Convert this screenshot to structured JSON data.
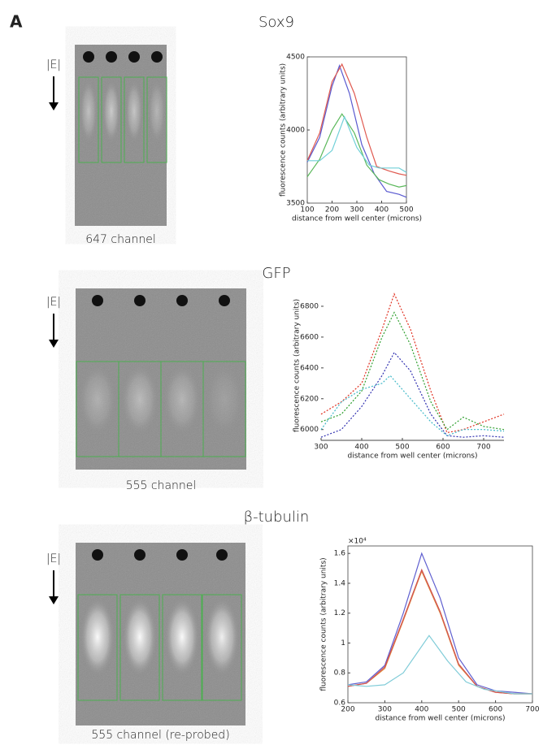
{
  "panel_label": "A",
  "panels": [
    {
      "title": "Sox9",
      "field_label": "|E|",
      "caption": "647 channel"
    },
    {
      "title": "GFP",
      "field_label": "|E|",
      "caption": "555 channel"
    },
    {
      "title": "β-tubulin",
      "field_label": "|E|",
      "caption": "555 channel (re-probed)"
    }
  ],
  "chart_data": [
    {
      "type": "line",
      "x_label": "distance from well center (microns)",
      "y_label": "fluorescence counts (arbitrary units)",
      "xlim": [
        100,
        500
      ],
      "xticks": [
        100,
        200,
        300,
        400,
        500
      ],
      "ylim": [
        3500,
        4500
      ],
      "yticks": [
        3500,
        4000,
        4500
      ],
      "line_style": "solid",
      "series": [
        {
          "color": "#5a5ad0",
          "x": [
            100,
            150,
            200,
            230,
            270,
            320,
            370,
            420,
            470,
            500
          ],
          "values": [
            3780,
            3950,
            4300,
            4440,
            4250,
            3900,
            3700,
            3580,
            3560,
            3540
          ]
        },
        {
          "color": "#e05a50",
          "x": [
            100,
            150,
            200,
            240,
            290,
            340,
            380,
            430,
            470,
            500
          ],
          "values": [
            3790,
            3980,
            4330,
            4450,
            4250,
            3950,
            3750,
            3720,
            3700,
            3690
          ]
        },
        {
          "color": "#5ab85a",
          "x": [
            100,
            150,
            200,
            240,
            290,
            340,
            390,
            430,
            470,
            500
          ],
          "values": [
            3680,
            3800,
            4000,
            4110,
            3980,
            3760,
            3660,
            3630,
            3610,
            3620
          ]
        },
        {
          "color": "#70d0d8",
          "x": [
            100,
            150,
            200,
            250,
            300,
            350,
            390,
            430,
            470,
            500
          ],
          "values": [
            3790,
            3790,
            3860,
            4090,
            3880,
            3760,
            3740,
            3740,
            3740,
            3710
          ]
        }
      ]
    },
    {
      "type": "line",
      "x_label": "distance from well center (microns)",
      "y_label": "fluorescence counts (arbitrary units)",
      "xlim": [
        300,
        750
      ],
      "xticks": [
        300,
        400,
        500,
        600,
        700
      ],
      "ylim": [
        5930,
        6900
      ],
      "yticks": [
        6000,
        6200,
        6400,
        6600,
        6800
      ],
      "line_style": "dotted",
      "series": [
        {
          "color": "#e03020",
          "x": [
            300,
            350,
            400,
            450,
            480,
            520,
            570,
            610,
            650,
            700,
            750
          ],
          "values": [
            6100,
            6180,
            6300,
            6650,
            6880,
            6650,
            6250,
            5980,
            6000,
            6050,
            6100
          ]
        },
        {
          "color": "#30a030",
          "x": [
            300,
            350,
            400,
            450,
            480,
            520,
            570,
            610,
            650,
            700,
            750
          ],
          "values": [
            6050,
            6100,
            6250,
            6600,
            6760,
            6550,
            6180,
            6000,
            6080,
            6020,
            6000
          ]
        },
        {
          "color": "#3030b0",
          "x": [
            300,
            350,
            400,
            450,
            480,
            520,
            570,
            610,
            650,
            700,
            750
          ],
          "values": [
            5950,
            6000,
            6150,
            6350,
            6500,
            6380,
            6100,
            5960,
            5950,
            5960,
            5950
          ]
        },
        {
          "color": "#40b8c8",
          "x": [
            300,
            350,
            400,
            450,
            470,
            520,
            570,
            610,
            650,
            700,
            750
          ],
          "values": [
            6000,
            6180,
            6260,
            6300,
            6350,
            6200,
            6050,
            5960,
            6000,
            6000,
            5990
          ]
        }
      ]
    },
    {
      "type": "line",
      "x_label": "distance from well center (microns)",
      "y_label": "fluorescence counts (arbitrary units)",
      "y_exponent": "×10⁴",
      "xlim": [
        200,
        700
      ],
      "xticks": [
        200,
        300,
        400,
        500,
        600,
        700
      ],
      "ylim": [
        0.6,
        1.65
      ],
      "yticks": [
        0.6,
        0.8,
        1,
        1.2,
        1.4,
        1.6
      ],
      "line_style": "solid",
      "series": [
        {
          "color": "#6060d0",
          "x": [
            200,
            250,
            300,
            350,
            400,
            450,
            500,
            550,
            600,
            650,
            700
          ],
          "values": [
            0.72,
            0.74,
            0.85,
            1.2,
            1.6,
            1.3,
            0.9,
            0.72,
            0.68,
            0.67,
            0.66
          ]
        },
        {
          "color": "#e08a40",
          "x": [
            200,
            250,
            300,
            350,
            400,
            450,
            500,
            550,
            600,
            650,
            700
          ],
          "values": [
            0.71,
            0.73,
            0.83,
            1.15,
            1.48,
            1.2,
            0.85,
            0.71,
            0.67,
            0.66,
            0.66
          ]
        },
        {
          "color": "#d05050",
          "x": [
            200,
            250,
            300,
            350,
            400,
            450,
            500,
            550,
            600,
            650,
            700
          ],
          "values": [
            0.71,
            0.73,
            0.84,
            1.16,
            1.49,
            1.21,
            0.86,
            0.71,
            0.67,
            0.66,
            0.66
          ]
        },
        {
          "color": "#80ccd8",
          "x": [
            200,
            250,
            300,
            350,
            420,
            470,
            520,
            570,
            600,
            650,
            700
          ],
          "values": [
            0.72,
            0.71,
            0.72,
            0.8,
            1.05,
            0.88,
            0.74,
            0.69,
            0.68,
            0.66,
            0.66
          ]
        }
      ]
    }
  ]
}
